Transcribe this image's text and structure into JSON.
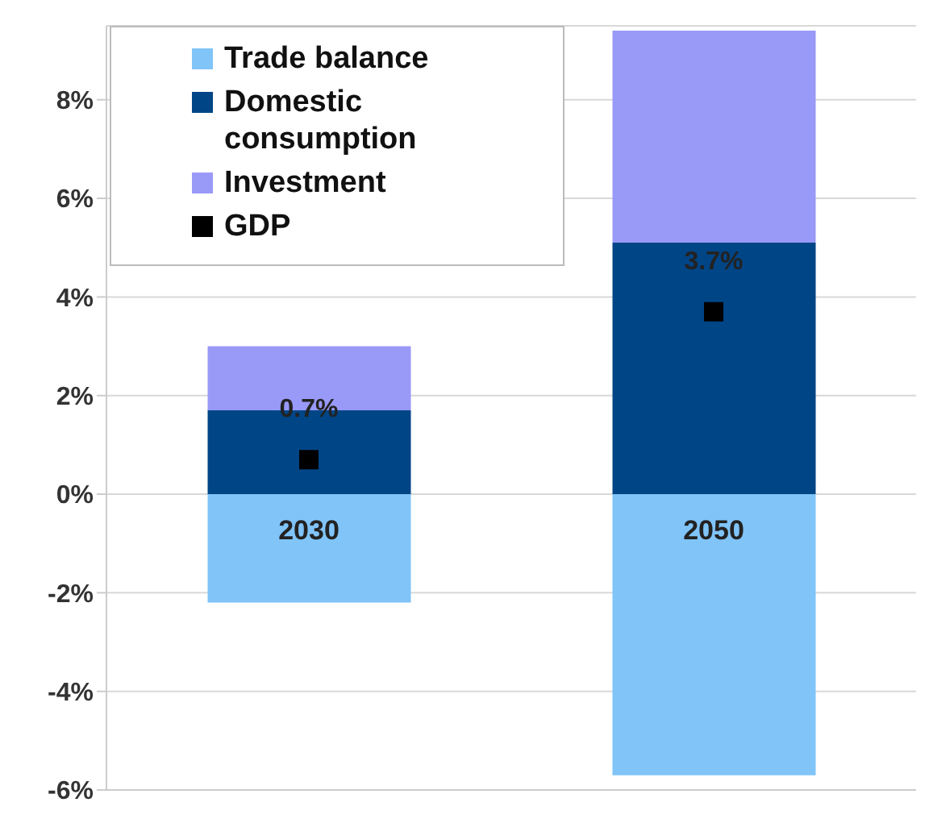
{
  "chart_data": {
    "type": "bar",
    "stacked": true,
    "categories": [
      "2030",
      "2050"
    ],
    "series": [
      {
        "name": "Trade balance",
        "color": "#80c4f8",
        "values": [
          -2.2,
          -5.7
        ]
      },
      {
        "name": "Domestic consumption",
        "color": "#004586",
        "values": [
          1.7,
          5.1
        ]
      },
      {
        "name": "Investment",
        "color": "#9999f8",
        "values": [
          1.3,
          4.3
        ]
      },
      {
        "name": "GDP",
        "type": "scatter",
        "color": "#000000",
        "values": [
          0.7,
          3.7
        ],
        "value_labels": [
          "0.7%",
          "3.7%"
        ]
      }
    ],
    "ylim": [
      -6,
      9.5
    ],
    "yticks": [
      {
        "value": -6,
        "label": "-6%"
      },
      {
        "value": -4,
        "label": "-4%"
      },
      {
        "value": -2,
        "label": "-2%"
      },
      {
        "value": 0,
        "label": "0%"
      },
      {
        "value": 2,
        "label": "2%"
      },
      {
        "value": 4,
        "label": "4%"
      },
      {
        "value": 6,
        "label": "6%"
      },
      {
        "value": 8,
        "label": "8%"
      }
    ],
    "grid": "y",
    "legend": "top left",
    "marker": "square"
  }
}
